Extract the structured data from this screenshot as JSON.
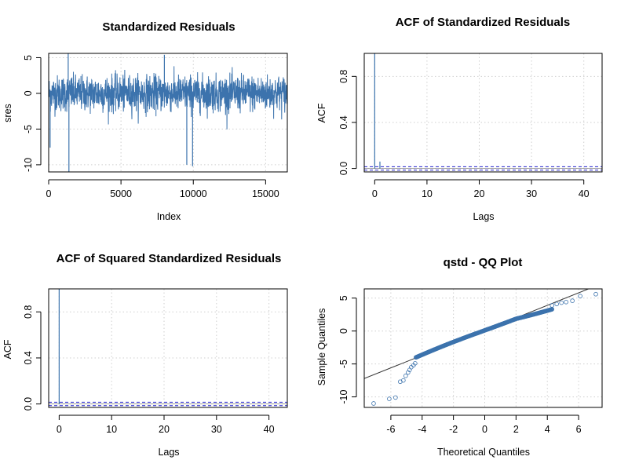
{
  "colors": {
    "series": "#3c73ad",
    "band": "#2222cc",
    "grid": "#cfcfcf",
    "line": "#333333"
  },
  "chart_data": [
    {
      "type": "line",
      "title": "Standardized Residuals",
      "xlabel": "Index",
      "ylabel": "sres",
      "xlim": [
        0,
        16500
      ],
      "ylim": [
        -11,
        5.6
      ],
      "xticks": [
        0,
        5000,
        10000,
        15000
      ],
      "yticks": [
        -10,
        -5,
        0,
        5
      ],
      "grid": true,
      "n": 16500,
      "notable_points": [
        {
          "x": 1400,
          "y": -11
        },
        {
          "x": 9550,
          "y": -10
        },
        {
          "x": 9950,
          "y": -10.2
        },
        {
          "x": 1350,
          "y": 5.6
        },
        {
          "x": 8000,
          "y": 5.4
        },
        {
          "x": 100,
          "y": -7.6
        }
      ]
    },
    {
      "type": "bar",
      "title": "ACF of Standardized Residuals",
      "xlabel": "Lags",
      "ylabel": "ACF",
      "xlim": [
        -2,
        43.5
      ],
      "ylim": [
        -0.03,
        1.0
      ],
      "xticks": [
        0,
        10,
        20,
        30,
        40
      ],
      "yticks": [
        0.0,
        0.4,
        0.8
      ],
      "grid": true,
      "lags": [
        0,
        1
      ],
      "values": [
        1.0,
        0.06
      ],
      "conf_band": 0.015
    },
    {
      "type": "bar",
      "title": "ACF of Squared Standardized Residuals",
      "xlabel": "Lags",
      "ylabel": "ACF",
      "xlim": [
        -2,
        43.5
      ],
      "ylim": [
        -0.03,
        1.0
      ],
      "xticks": [
        0,
        10,
        20,
        30,
        40
      ],
      "yticks": [
        0.0,
        0.4,
        0.8
      ],
      "grid": true,
      "lags": [
        0
      ],
      "values": [
        1.0
      ],
      "conf_band": 0.015
    },
    {
      "type": "scatter",
      "title": "qstd - QQ Plot",
      "xlabel": "Theoretical Quantiles",
      "ylabel": "Sample Quantiles",
      "xlim": [
        -7.7,
        7.5
      ],
      "ylim": [
        -11.6,
        6.4
      ],
      "xticks": [
        -6,
        -4,
        -2,
        0,
        2,
        4,
        6
      ],
      "yticks": [
        -10,
        -5,
        0,
        5
      ],
      "grid": true,
      "reference_line": {
        "slope": 0.95,
        "intercept": 0.1
      },
      "tail_points": [
        {
          "x": -7.1,
          "y": -11.0
        },
        {
          "x": -6.1,
          "y": -10.3
        },
        {
          "x": -5.7,
          "y": -10.1
        },
        {
          "x": -5.4,
          "y": -7.7
        },
        {
          "x": -5.2,
          "y": -7.5
        },
        {
          "x": -5.05,
          "y": -6.8
        },
        {
          "x": -4.9,
          "y": -6.3
        },
        {
          "x": -4.8,
          "y": -5.9
        },
        {
          "x": -4.7,
          "y": -5.5
        },
        {
          "x": -4.55,
          "y": -5.2
        },
        {
          "x": -4.45,
          "y": -4.9
        },
        {
          "x": 4.3,
          "y": 3.9
        },
        {
          "x": 4.6,
          "y": 4.1
        },
        {
          "x": 4.9,
          "y": 4.3
        },
        {
          "x": 5.2,
          "y": 4.4
        },
        {
          "x": 5.6,
          "y": 4.6
        },
        {
          "x": 6.1,
          "y": 5.3
        },
        {
          "x": 7.1,
          "y": 5.6
        }
      ]
    }
  ]
}
